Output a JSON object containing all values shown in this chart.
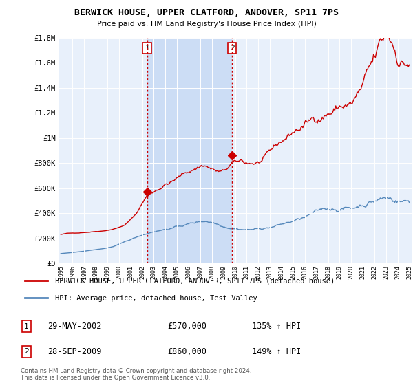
{
  "title": "BERWICK HOUSE, UPPER CLATFORD, ANDOVER, SP11 7PS",
  "subtitle": "Price paid vs. HM Land Registry's House Price Index (HPI)",
  "legend_line1": "BERWICK HOUSE, UPPER CLATFORD, ANDOVER, SP11 7PS (detached house)",
  "legend_line2": "HPI: Average price, detached house, Test Valley",
  "annotation1_label": "1",
  "annotation1_date": "29-MAY-2002",
  "annotation1_price": "£570,000",
  "annotation1_hpi": "135% ↑ HPI",
  "annotation2_label": "2",
  "annotation2_date": "28-SEP-2009",
  "annotation2_price": "£860,000",
  "annotation2_hpi": "149% ↑ HPI",
  "footer": "Contains HM Land Registry data © Crown copyright and database right 2024.\nThis data is licensed under the Open Government Licence v3.0.",
  "red_color": "#cc0000",
  "blue_color": "#5588bb",
  "highlight_color": "#ccddf5",
  "background_plot": "#e8f0fb",
  "grid_color": "#ffffff",
  "marker1_x": 2002.42,
  "marker1_y": 570000,
  "marker2_x": 2009.75,
  "marker2_y": 860000,
  "vline1_x": 2002.42,
  "vline2_x": 2009.75,
  "ylim": [
    0,
    1800000
  ],
  "xlim": [
    1994.8,
    2025.2
  ],
  "yticks": [
    0,
    200000,
    400000,
    600000,
    800000,
    1000000,
    1200000,
    1400000,
    1600000,
    1800000
  ],
  "red_keypoints_x": [
    1995.0,
    1995.5,
    1996.0,
    1996.5,
    1997.0,
    1997.5,
    1998.0,
    1998.5,
    1999.0,
    1999.5,
    2000.0,
    2000.5,
    2001.0,
    2001.5,
    2002.0,
    2002.42,
    2002.8,
    2003.5,
    2004.0,
    2004.5,
    2005.0,
    2005.5,
    2006.0,
    2006.5,
    2007.0,
    2007.3,
    2007.6,
    2008.0,
    2008.5,
    2009.0,
    2009.4,
    2009.75,
    2010.0,
    2010.5,
    2011.0,
    2011.5,
    2012.0,
    2012.5,
    2013.0,
    2013.5,
    2014.0,
    2014.5,
    2015.0,
    2015.5,
    2016.0,
    2016.5,
    2017.0,
    2017.5,
    2018.0,
    2018.5,
    2019.0,
    2019.5,
    2020.0,
    2020.5,
    2021.0,
    2021.5,
    2022.0,
    2022.5,
    2023.0,
    2023.2,
    2023.5,
    2024.0,
    2024.5,
    2025.0
  ],
  "red_keypoints_y": [
    230000,
    238000,
    240000,
    243000,
    248000,
    252000,
    258000,
    262000,
    270000,
    280000,
    295000,
    315000,
    360000,
    410000,
    500000,
    570000,
    590000,
    640000,
    680000,
    700000,
    730000,
    760000,
    790000,
    820000,
    850000,
    870000,
    855000,
    830000,
    800000,
    785000,
    820000,
    860000,
    845000,
    855000,
    840000,
    845000,
    850000,
    870000,
    900000,
    940000,
    980000,
    1020000,
    1060000,
    1090000,
    1120000,
    1140000,
    1180000,
    1220000,
    1260000,
    1280000,
    1310000,
    1330000,
    1320000,
    1380000,
    1430000,
    1500000,
    1560000,
    1640000,
    1680000,
    1700000,
    1660000,
    1590000,
    1560000,
    1570000
  ],
  "blue_keypoints_x": [
    1995.0,
    1995.5,
    1996.0,
    1996.5,
    1997.0,
    1997.5,
    1998.0,
    1998.5,
    1999.0,
    1999.5,
    2000.0,
    2000.5,
    2001.0,
    2001.5,
    2002.0,
    2002.5,
    2003.0,
    2003.5,
    2004.0,
    2004.5,
    2005.0,
    2005.5,
    2006.0,
    2006.5,
    2007.0,
    2007.5,
    2008.0,
    2008.5,
    2009.0,
    2009.5,
    2010.0,
    2010.5,
    2011.0,
    2011.5,
    2012.0,
    2012.5,
    2013.0,
    2013.5,
    2014.0,
    2014.5,
    2015.0,
    2015.5,
    2016.0,
    2016.5,
    2017.0,
    2017.5,
    2018.0,
    2018.5,
    2019.0,
    2019.5,
    2020.0,
    2020.5,
    2021.0,
    2021.5,
    2022.0,
    2022.5,
    2023.0,
    2023.5,
    2024.0,
    2024.5,
    2025.0
  ],
  "blue_keypoints_y": [
    78000,
    82000,
    86000,
    90000,
    96000,
    102000,
    108000,
    114000,
    122000,
    132000,
    148000,
    165000,
    182000,
    200000,
    218000,
    232000,
    248000,
    258000,
    268000,
    278000,
    288000,
    298000,
    310000,
    318000,
    328000,
    335000,
    330000,
    318000,
    305000,
    300000,
    298000,
    295000,
    293000,
    295000,
    298000,
    305000,
    315000,
    328000,
    342000,
    356000,
    370000,
    385000,
    400000,
    415000,
    430000,
    442000,
    452000,
    460000,
    468000,
    475000,
    470000,
    490000,
    520000,
    548000,
    572000,
    590000,
    595000,
    592000,
    588000,
    582000,
    578000
  ]
}
